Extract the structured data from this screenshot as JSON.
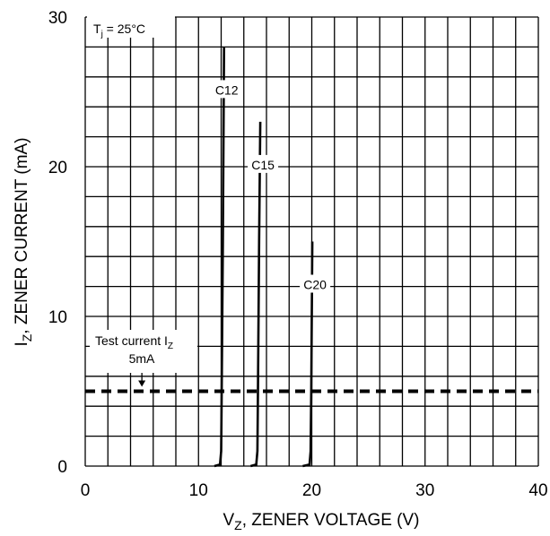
{
  "chart_data": {
    "type": "line",
    "xlabel": {
      "main": "V",
      "sub": "Z",
      "rest": ", ZENER VOLTAGE (V)"
    },
    "ylabel": {
      "main": "I",
      "sub": "Z",
      "rest": ", ZENER CURRENT (mA)"
    },
    "xlim": [
      0,
      40
    ],
    "ylim": [
      0,
      30
    ],
    "x_ticks": [
      0,
      10,
      20,
      30,
      40
    ],
    "y_ticks": [
      0,
      10,
      20,
      30
    ],
    "x_minor_step": 2,
    "y_minor_step": 2,
    "grid": true,
    "condition": {
      "main": "T",
      "sub": "j",
      "rest": " = 25°C"
    },
    "series": [
      {
        "name": "C12",
        "points": [
          [
            11.4,
            0
          ],
          [
            11.9,
            0.1
          ],
          [
            12.0,
            1
          ],
          [
            12.05,
            5
          ],
          [
            12.15,
            15
          ],
          [
            12.25,
            28
          ]
        ]
      },
      {
        "name": "C15",
        "points": [
          [
            14.6,
            0
          ],
          [
            15.1,
            0.1
          ],
          [
            15.2,
            1
          ],
          [
            15.25,
            5
          ],
          [
            15.35,
            15
          ],
          [
            15.45,
            23
          ]
        ]
      },
      {
        "name": "C20",
        "points": [
          [
            19.2,
            0
          ],
          [
            19.8,
            0.1
          ],
          [
            19.9,
            1
          ],
          [
            19.95,
            5
          ],
          [
            20.0,
            10
          ],
          [
            20.05,
            15
          ]
        ]
      }
    ],
    "test_current": {
      "value": 5,
      "label_main": "Test current I",
      "label_sub": "Z",
      "value_label": "5mA"
    }
  }
}
